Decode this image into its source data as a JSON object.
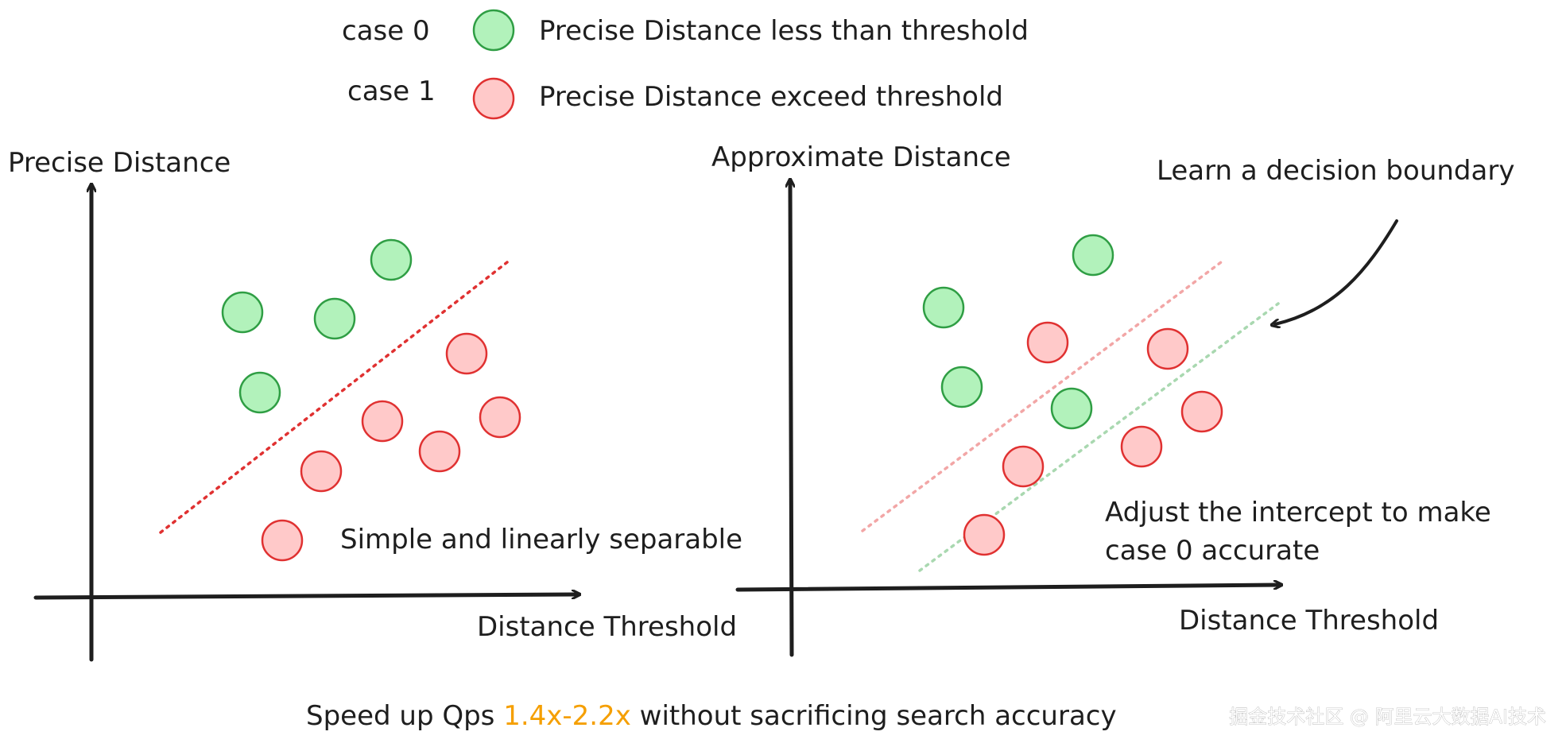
{
  "colors": {
    "ink": "#1e1e1e",
    "green_fill": "#b2f2bb",
    "green_stroke": "#2f9e44",
    "red_fill": "#ffc9c9",
    "red_stroke": "#e03131",
    "red_line": "#e03131",
    "pink_line": "#f2a6a6",
    "green_line": "#a9d8b0",
    "highlight": "#f59f00",
    "watermark": "#ffffff"
  },
  "legend": {
    "items": [
      {
        "case_label": "case 0",
        "class": "green",
        "description": "Precise Distance less than threshold"
      },
      {
        "case_label": "case 1",
        "class": "red",
        "description": "Precise Distance exceed threshold"
      }
    ]
  },
  "left_plot": {
    "y_axis_label": "Precise Distance",
    "x_axis_label": "Distance Threshold",
    "note": "Simple and linearly separable"
  },
  "right_plot": {
    "y_axis_label": "Approximate Distance",
    "x_axis_label": "Distance Threshold",
    "annotation_top": "Learn a decision boundary",
    "annotation_bottom_line1": "Adjust the intercept to make",
    "annotation_bottom_line2": "case 0 accurate"
  },
  "footer": {
    "before": "Speed up Qps ",
    "highlight": "1.4x-2.2x",
    "after": " without sacrificing search accuracy"
  },
  "watermark": "掘金技术社区 @ 阿里云大数据AI技术"
}
